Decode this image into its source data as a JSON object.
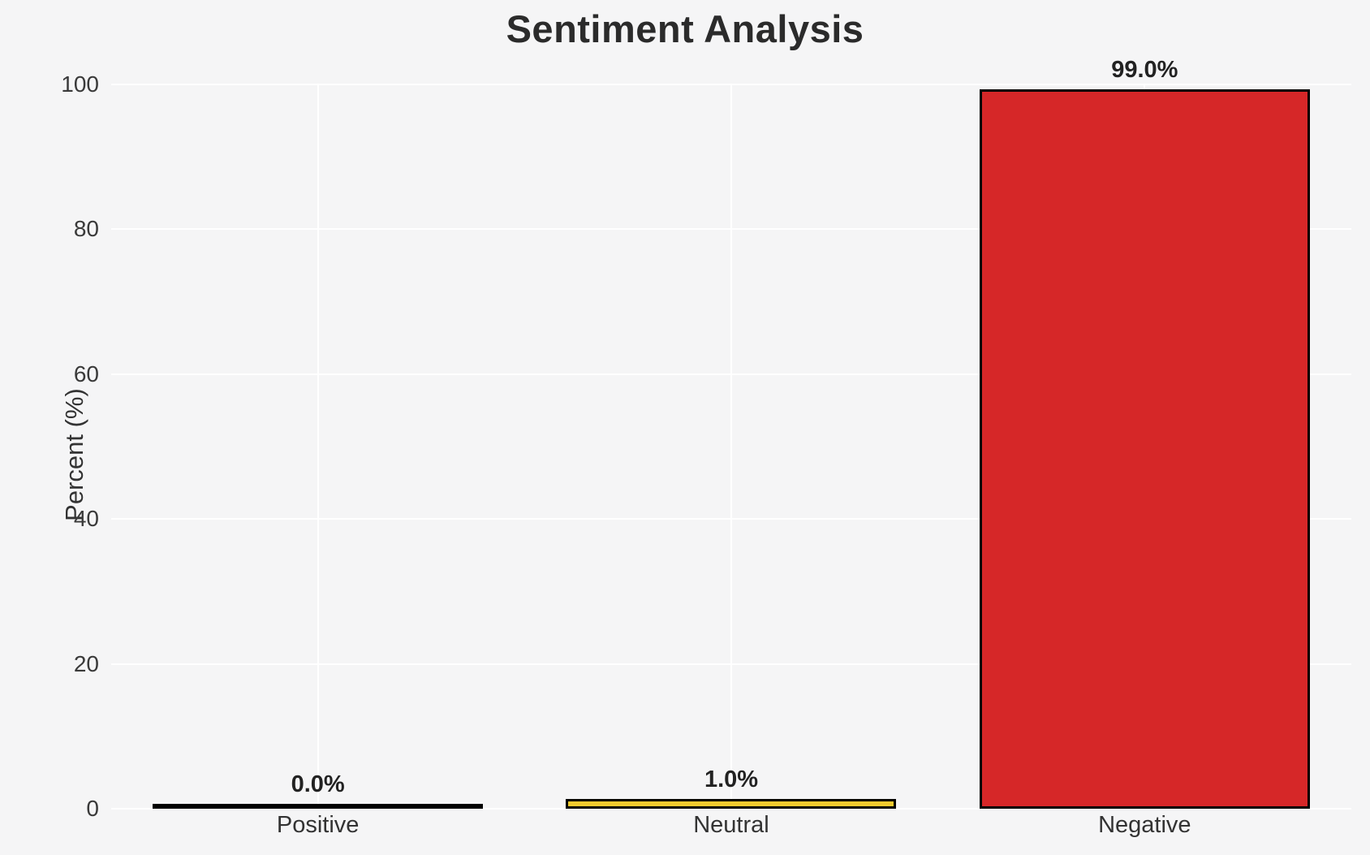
{
  "chart_data": {
    "type": "bar",
    "title": "Sentiment Analysis",
    "xlabel": "",
    "ylabel": "Percent (%)",
    "categories": [
      "Positive",
      "Neutral",
      "Negative"
    ],
    "values": [
      0.0,
      1.0,
      99.0
    ],
    "value_labels": [
      "0.0%",
      "1.0%",
      "99.0%"
    ],
    "ytick_labels": [
      "0",
      "20",
      "40",
      "60",
      "80",
      "100"
    ],
    "yticks": [
      0,
      20,
      40,
      60,
      80,
      100
    ],
    "ylim": [
      0,
      100
    ],
    "bar_fills": [
      null,
      "#f2ca2e",
      "#d62728"
    ],
    "bar_edge_color": "#000000",
    "background_color": "#f5f5f6",
    "gridline_color": "#ffffff",
    "grid": "horizontal and vertical white gridlines on light gray, no axis spines",
    "legend": "none"
  }
}
